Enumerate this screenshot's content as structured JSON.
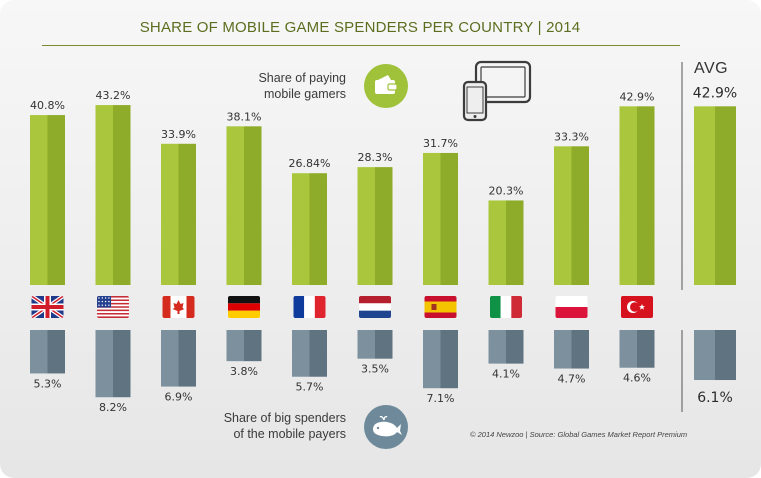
{
  "title": "SHARE OF MOBILE GAME SPENDERS PER COUNTRY | 2014",
  "avg_header": "AVG",
  "legend": {
    "top_line1": "Share of paying",
    "top_line2": "mobile gamers",
    "bottom_line1": "Share of big spenders",
    "bottom_line2": "of the mobile payers"
  },
  "source": "© 2014 Newzoo | Source: Global Games Market Report Premium",
  "icons": {
    "wallet": "wallet-icon",
    "whale": "whale-icon",
    "devices": "tablet-phone-icon"
  },
  "colors": {
    "green": "#a9c63c",
    "green_dark": "#8eab2a",
    "grey": "#7c919d",
    "grey_dark": "#5f7480",
    "title": "#5c6e1f"
  },
  "chart_data": {
    "type": "bar",
    "title": "SHARE OF MOBILE GAME SPENDERS PER COUNTRY | 2014",
    "categories": [
      "United Kingdom",
      "United States",
      "Canada",
      "Germany",
      "France",
      "Netherlands",
      "Spain",
      "Italy",
      "Poland",
      "Turkey"
    ],
    "series": [
      {
        "name": "Share of paying mobile gamers",
        "labels": [
          "40.8%",
          "43.2%",
          "33.9%",
          "38.1%",
          "26.84%",
          "28.3%",
          "31.7%",
          "20.3%",
          "33.3%",
          "42.9%"
        ],
        "values": [
          40.8,
          43.2,
          33.9,
          38.1,
          26.84,
          28.3,
          31.7,
          20.3,
          33.3,
          42.9
        ]
      },
      {
        "name": "Share of big spenders of the mobile payers",
        "labels": [
          "5.3%",
          "8.2%",
          "6.9%",
          "3.8%",
          "5.7%",
          "3.5%",
          "7.1%",
          "4.1%",
          "4.7%",
          "4.6%"
        ],
        "values": [
          5.3,
          8.2,
          6.9,
          3.8,
          5.7,
          3.5,
          7.1,
          4.1,
          4.7,
          4.6
        ]
      }
    ],
    "average": {
      "label": "AVG",
      "paying": 42.9,
      "paying_label": "42.9%",
      "big_spenders": 6.1,
      "big_spenders_label": "6.1%"
    },
    "flags": [
      "uk",
      "us",
      "ca",
      "de",
      "fr",
      "nl",
      "es",
      "it",
      "pl",
      "tr"
    ]
  }
}
